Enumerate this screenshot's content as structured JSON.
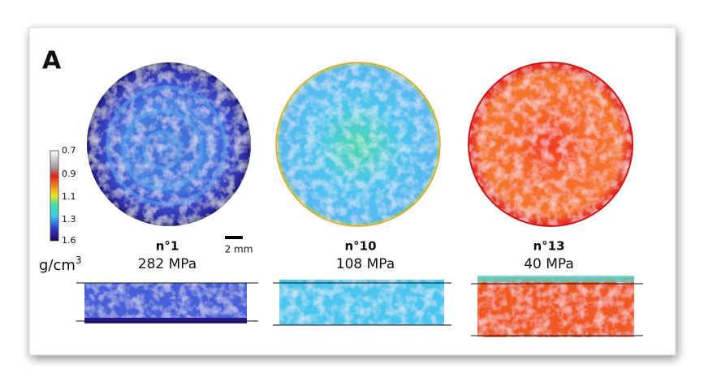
{
  "panel_label": "A",
  "colorbar": {
    "labels": [
      "0.7",
      "0.9",
      "1.1",
      "1.3",
      "1.6"
    ],
    "unit": {
      "base": "g/cm",
      "sup": "3"
    }
  },
  "scale_bar": "2 mm",
  "samples": [
    {
      "name": "n°1",
      "pressure": "282 MPa"
    },
    {
      "name": "n°10",
      "pressure": "108 MPa"
    },
    {
      "name": "n°13",
      "pressure": "40 MPa"
    }
  ]
}
